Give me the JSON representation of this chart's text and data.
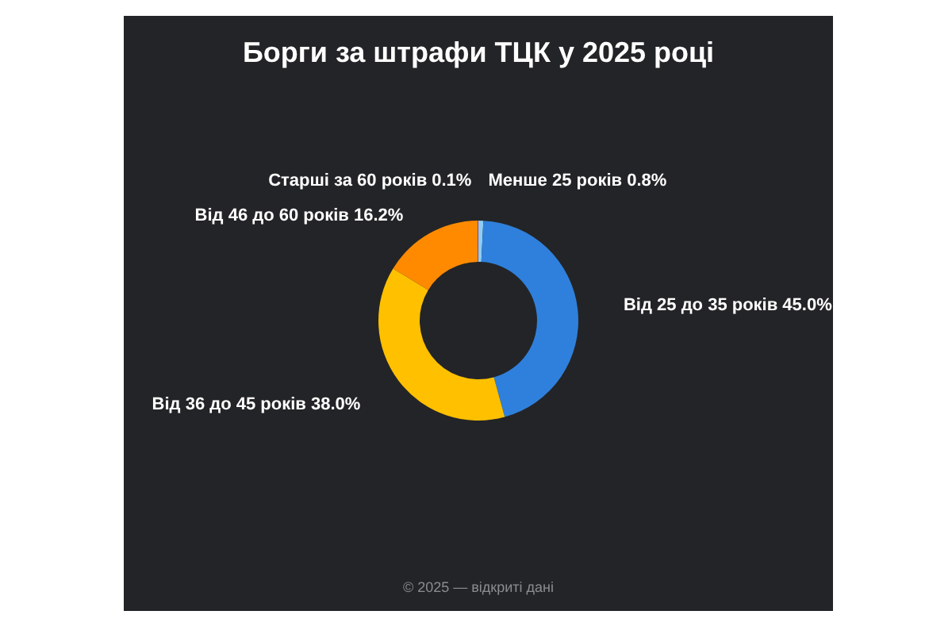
{
  "chart_data": {
    "type": "donut",
    "title": "Борги за штрафи ТЦК у 2025 році",
    "categories": [
      "Менше 25 років 0.8%",
      "Від 25 до 35 років 45.0%",
      "Від 36 до 45 років 38.0%",
      "Від 46 до 60 років 16.2%",
      "Старші за 60 років 0.1%"
    ],
    "values": [
      0.8,
      45.0,
      38.0,
      16.2,
      0.1
    ],
    "colors": [
      "#8ecdf5",
      "#2f80dc",
      "#ffc000",
      "#ff8a00",
      "#d0344a"
    ],
    "legend": false,
    "annotations": [
      "© 2025 — відкриті дані"
    ]
  }
}
